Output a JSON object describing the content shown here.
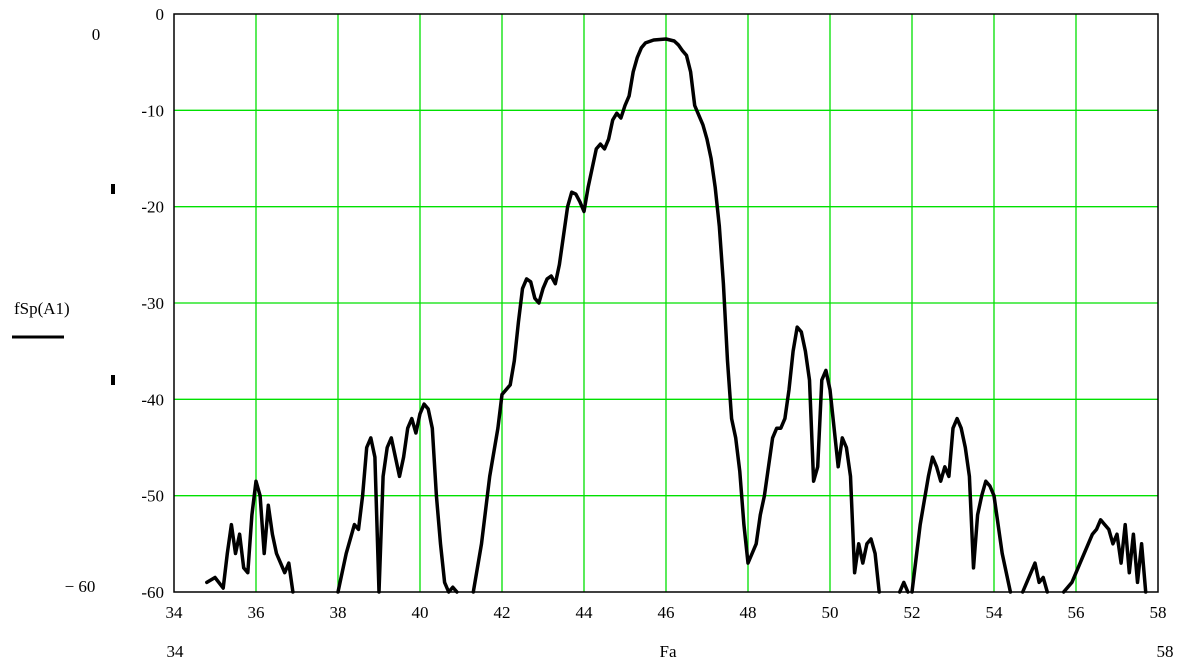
{
  "chart_data": {
    "type": "line",
    "title": "",
    "xlabel": "Fa",
    "ylabel": "fSp(A1)",
    "xlim": [
      34,
      58
    ],
    "ylim": [
      -60,
      0
    ],
    "xticks": [
      "34",
      "36",
      "38",
      "40",
      "42",
      "44",
      "46",
      "48",
      "50",
      "52",
      "54",
      "56",
      "58"
    ],
    "yticks": [
      "0",
      "-10",
      "-20",
      "-30",
      "-40",
      "-50",
      "-60"
    ],
    "x_range_labels": {
      "min": "34",
      "max": "58"
    },
    "y_range_labels": {
      "max": "0",
      "min": "− 60"
    },
    "grid": true,
    "grid_color": "#00e000",
    "line_color": "#000000",
    "series": [
      {
        "name": "fSp(A1)",
        "segments": [
          [
            [
              34.8,
              -59
            ],
            [
              35.0,
              -58.5
            ],
            [
              35.2,
              -59.6
            ],
            [
              35.3,
              -56
            ],
            [
              35.4,
              -53
            ],
            [
              35.5,
              -56
            ],
            [
              35.6,
              -54
            ],
            [
              35.7,
              -57.5
            ],
            [
              35.8,
              -58
            ],
            [
              35.9,
              -52
            ],
            [
              36.0,
              -48.5
            ],
            [
              36.1,
              -50
            ],
            [
              36.2,
              -56
            ],
            [
              36.3,
              -51
            ],
            [
              36.4,
              -54
            ],
            [
              36.5,
              -56
            ],
            [
              36.6,
              -57
            ],
            [
              36.7,
              -58
            ],
            [
              36.8,
              -57
            ],
            [
              36.9,
              -60
            ]
          ],
          [
            [
              38.0,
              -60
            ],
            [
              38.2,
              -56
            ],
            [
              38.4,
              -53
            ],
            [
              38.5,
              -53.5
            ],
            [
              38.6,
              -50
            ],
            [
              38.7,
              -45
            ],
            [
              38.8,
              -44
            ],
            [
              38.9,
              -46
            ],
            [
              39.0,
              -60
            ],
            [
              39.1,
              -48
            ],
            [
              39.2,
              -45
            ],
            [
              39.3,
              -44
            ],
            [
              39.4,
              -46
            ],
            [
              39.5,
              -48
            ],
            [
              39.6,
              -46
            ],
            [
              39.7,
              -43
            ],
            [
              39.8,
              -42
            ],
            [
              39.9,
              -43.5
            ],
            [
              40.0,
              -41.5
            ],
            [
              40.1,
              -40.5
            ],
            [
              40.2,
              -41
            ],
            [
              40.3,
              -43
            ],
            [
              40.4,
              -50
            ],
            [
              40.5,
              -55
            ],
            [
              40.6,
              -59
            ],
            [
              40.7,
              -60
            ],
            [
              40.8,
              -59.5
            ],
            [
              40.9,
              -60
            ]
          ],
          [
            [
              41.3,
              -60
            ],
            [
              41.5,
              -55
            ],
            [
              41.7,
              -48
            ],
            [
              41.9,
              -43
            ],
            [
              42.0,
              -39.5
            ],
            [
              42.2,
              -38.5
            ],
            [
              42.3,
              -36
            ],
            [
              42.4,
              -32
            ],
            [
              42.5,
              -28.5
            ],
            [
              42.6,
              -27.5
            ],
            [
              42.7,
              -27.8
            ],
            [
              42.8,
              -29.5
            ],
            [
              42.9,
              -30
            ],
            [
              43.0,
              -28.5
            ],
            [
              43.1,
              -27.5
            ],
            [
              43.2,
              -27.2
            ],
            [
              43.3,
              -28
            ],
            [
              43.4,
              -26
            ],
            [
              43.5,
              -23
            ],
            [
              43.6,
              -20
            ],
            [
              43.7,
              -18.5
            ],
            [
              43.8,
              -18.7
            ],
            [
              43.9,
              -19.5
            ],
            [
              44.0,
              -20.5
            ],
            [
              44.1,
              -18
            ],
            [
              44.2,
              -16
            ],
            [
              44.3,
              -14
            ],
            [
              44.4,
              -13.5
            ],
            [
              44.5,
              -14
            ],
            [
              44.6,
              -13
            ],
            [
              44.7,
              -11
            ],
            [
              44.8,
              -10.3
            ],
            [
              44.9,
              -10.8
            ],
            [
              45.0,
              -9.5
            ],
            [
              45.1,
              -8.5
            ],
            [
              45.2,
              -6
            ],
            [
              45.3,
              -4.5
            ],
            [
              45.4,
              -3.5
            ],
            [
              45.5,
              -3
            ],
            [
              45.7,
              -2.7
            ],
            [
              46.0,
              -2.6
            ],
            [
              46.2,
              -2.8
            ],
            [
              46.3,
              -3.2
            ],
            [
              46.4,
              -3.8
            ],
            [
              46.5,
              -4.3
            ],
            [
              46.6,
              -6
            ],
            [
              46.7,
              -9.5
            ],
            [
              46.8,
              -10.5
            ],
            [
              46.9,
              -11.5
            ],
            [
              47.0,
              -13
            ],
            [
              47.1,
              -15
            ],
            [
              47.2,
              -18
            ],
            [
              47.3,
              -22
            ],
            [
              47.4,
              -28
            ],
            [
              47.5,
              -36
            ],
            [
              47.6,
              -42
            ],
            [
              47.7,
              -44
            ],
            [
              47.8,
              -47.5
            ],
            [
              47.9,
              -53
            ],
            [
              48.0,
              -57
            ],
            [
              48.1,
              -56
            ],
            [
              48.2,
              -55
            ],
            [
              48.3,
              -52
            ],
            [
              48.4,
              -50
            ],
            [
              48.5,
              -47
            ],
            [
              48.6,
              -44
            ],
            [
              48.7,
              -43
            ],
            [
              48.8,
              -43
            ],
            [
              48.9,
              -42
            ],
            [
              49.0,
              -39
            ],
            [
              49.1,
              -35
            ],
            [
              49.2,
              -32.5
            ],
            [
              49.3,
              -33
            ],
            [
              49.4,
              -35
            ],
            [
              49.5,
              -38
            ],
            [
              49.6,
              -48.5
            ],
            [
              49.7,
              -47
            ],
            [
              49.8,
              -38
            ],
            [
              49.9,
              -37
            ],
            [
              50.0,
              -39
            ],
            [
              50.1,
              -43
            ],
            [
              50.2,
              -47
            ],
            [
              50.3,
              -44
            ],
            [
              50.4,
              -45
            ],
            [
              50.5,
              -48
            ],
            [
              50.6,
              -58
            ],
            [
              50.7,
              -55
            ],
            [
              50.8,
              -57
            ],
            [
              50.9,
              -55
            ],
            [
              51.0,
              -54.5
            ],
            [
              51.1,
              -56
            ],
            [
              51.2,
              -60
            ]
          ],
          [
            [
              51.7,
              -60
            ],
            [
              51.8,
              -59
            ],
            [
              51.9,
              -60
            ]
          ],
          [
            [
              52.0,
              -60
            ],
            [
              52.2,
              -53
            ],
            [
              52.4,
              -48
            ],
            [
              52.5,
              -46
            ],
            [
              52.6,
              -47
            ],
            [
              52.7,
              -48.5
            ],
            [
              52.8,
              -47
            ],
            [
              52.9,
              -48
            ],
            [
              53.0,
              -43
            ],
            [
              53.1,
              -42
            ],
            [
              53.2,
              -43
            ],
            [
              53.3,
              -45
            ],
            [
              53.4,
              -48
            ],
            [
              53.5,
              -57.5
            ],
            [
              53.6,
              -52
            ],
            [
              53.7,
              -50
            ],
            [
              53.8,
              -48.5
            ],
            [
              53.9,
              -49
            ],
            [
              54.0,
              -50
            ],
            [
              54.2,
              -56
            ],
            [
              54.4,
              -60
            ]
          ],
          [
            [
              54.7,
              -60
            ],
            [
              54.9,
              -58
            ],
            [
              55.0,
              -57
            ],
            [
              55.1,
              -59
            ],
            [
              55.2,
              -58.5
            ],
            [
              55.3,
              -60
            ]
          ],
          [
            [
              55.7,
              -60
            ],
            [
              55.9,
              -59
            ],
            [
              56.1,
              -57
            ],
            [
              56.3,
              -55
            ],
            [
              56.4,
              -54
            ],
            [
              56.5,
              -53.5
            ],
            [
              56.6,
              -52.5
            ],
            [
              56.7,
              -53
            ],
            [
              56.8,
              -53.5
            ],
            [
              56.9,
              -55
            ],
            [
              57.0,
              -54
            ],
            [
              57.1,
              -57
            ],
            [
              57.2,
              -53
            ],
            [
              57.3,
              -58
            ],
            [
              57.4,
              -54
            ],
            [
              57.5,
              -59
            ],
            [
              57.6,
              -55
            ],
            [
              57.7,
              -60
            ]
          ]
        ]
      }
    ]
  }
}
